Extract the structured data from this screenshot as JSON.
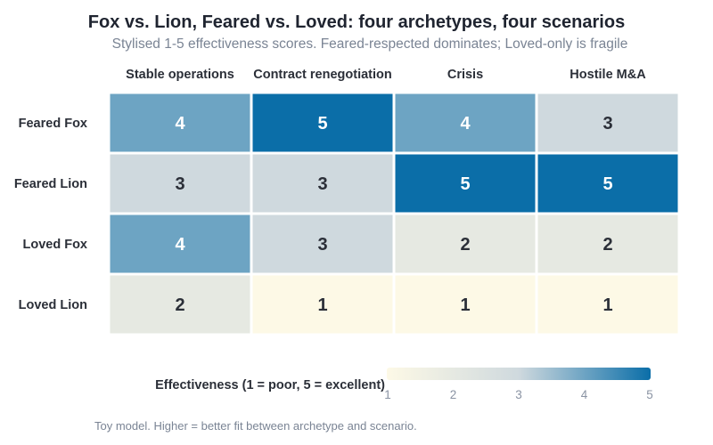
{
  "title": "Fox vs. Lion, Feared vs. Loved: four archetypes, four scenarios",
  "subtitle": "Stylised 1-5 effectiveness scores. Feared-respected dominates; Loved-only is fragile",
  "note": "Toy model. Higher = better fit between archetype and scenario.",
  "chart_data": {
    "type": "heatmap",
    "columns": [
      "Stable operations",
      "Contract renegotiation",
      "Crisis",
      "Hostile M&A"
    ],
    "rows": [
      "Feared Fox",
      "Feared Lion",
      "Loved Fox",
      "Loved Lion"
    ],
    "values": [
      [
        4,
        5,
        4,
        3
      ],
      [
        3,
        3,
        5,
        5
      ],
      [
        4,
        3,
        2,
        2
      ],
      [
        2,
        1,
        1,
        1
      ]
    ],
    "color_scale": {
      "min": 1,
      "max": 5,
      "low_color": "#fdf9e6",
      "mid_color": "#cfd9de",
      "high_color": "#0b6ea8"
    },
    "legend": {
      "title": "Effectiveness (1 = poor, 5 = excellent)",
      "ticks": [
        1,
        2,
        3,
        4,
        5
      ],
      "placement": "bottom"
    }
  }
}
